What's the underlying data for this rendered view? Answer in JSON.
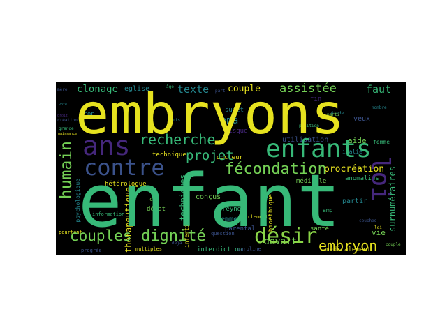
{
  "colors": {
    "background": "#000000",
    "page": "#ffffff",
    "yellow": "#e6e21f",
    "green": "#37b978",
    "teal": "#24868e",
    "blue": "#3b528b",
    "purple": "#45277c",
    "lime": "#8ad547",
    "lightgreen": "#74d055",
    "darkteal": "#1f6e8c"
  },
  "words": {
    "embryons": "embryons",
    "enfant": "enfant",
    "enfants": "enfants",
    "ans": "ans",
    "contre": "contre",
    "loi": "loi",
    "humain": "humain",
    "fecondation": "fécondation",
    "desir": "désir",
    "dignite": "dignité",
    "recherche": "recherche",
    "embryon": "embryon",
    "couples": "couples",
    "assistee": "assistée",
    "projet": "projet",
    "clonage": "clonage",
    "texte": "texte",
    "couple": "couple",
    "faut": "faut",
    "pma": "pma",
    "procreation": "procréation",
    "devait": "devait",
    "surnumeraires": "surnuméraires",
    "therapeutique": "thérapeutique",
    "techniques": "techniques",
    "eglise": "eglise",
    "technique": "technique",
    "docteur": "docteur",
    "risque": "risque",
    "sujet": "sujet",
    "utilisation": "utilisation",
    "aide": "aide",
    "partir": "partir",
    "vie": "vie",
    "medicale": "médicale",
    "femmes": "femmes",
    "concus": "conçus",
    "reynes": "reynes",
    "parental": "parental",
    "interdiction": "interdiction",
    "caroline": "caroline",
    "medicalement": "médicalement",
    "bioethique": "bioéthique",
    "heterologue": "hétérologue",
    "psychologique": "psychologique",
    "debat": "débat",
    "sante": "santé",
    "cas": "cas",
    "anomalies": "anomalies",
    "veux": "veux",
    "fin": "fin",
    "amp": "amp",
    "italie": "italie",
    "femme": "femme",
    "trop": "trop",
    "question": "question",
    "multiples": "multiples",
    "pourtant": "pourtant",
    "information": "information",
    "progres": "progrès",
    "parlement": "parlement",
    "infertilite": "infertilité",
    "etude": "étude",
    "position": "position",
    "couches": "couches",
    "grande": "grande",
    "creation": "création",
    "age": "âge",
    "part": "part",
    "nombre": "nombre",
    "louis": "louis",
    "parti": "parti",
    "deja": "déjà",
    "mere": "mère",
    "vote": "vote",
    "droit": "droit",
    "loi_small": "loi",
    "naissance": "naissance",
    "couple_small": "couple"
  }
}
